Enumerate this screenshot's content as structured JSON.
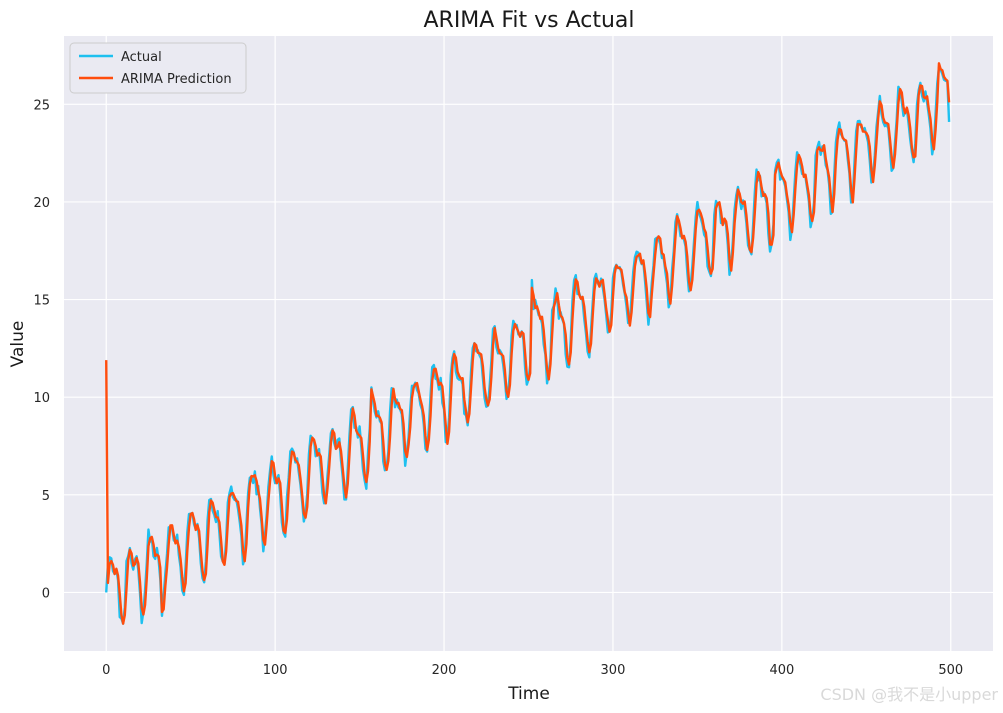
{
  "chart_data": {
    "type": "line",
    "title": "ARIMA Fit vs Actual",
    "xlabel": "Time",
    "ylabel": "Value",
    "xlim": [
      -25,
      525
    ],
    "ylim": [
      -3,
      28.5
    ],
    "xticks": [
      0,
      100,
      200,
      300,
      400,
      500
    ],
    "yticks": [
      0,
      5,
      10,
      15,
      20,
      25
    ],
    "grid": true,
    "legend": "top-left",
    "n_points": 500,
    "trend_start": 0,
    "trend_end": 25.5,
    "season_period": 12,
    "season_amplitude": 1.7,
    "series": [
      {
        "name": "Actual",
        "color": "#1ec0ef",
        "start": 0.0,
        "end": 24.1
      },
      {
        "name": "ARIMA Prediction",
        "color": "#ff4d0d",
        "start": 11.9,
        "end": 25.1
      }
    ],
    "key_points": [
      {
        "x": 0,
        "actual": 0.0,
        "prediction": 11.9
      },
      {
        "x": 10,
        "actual": -1.6,
        "prediction": -1.6
      },
      {
        "x": 33,
        "actual": -1.2,
        "prediction": -1.0
      },
      {
        "x": 88,
        "actual": 6.2,
        "prediction": 6.0
      },
      {
        "x": 157,
        "actual": 10.5,
        "prediction": 10.4
      },
      {
        "x": 252,
        "actual": 16.0,
        "prediction": 15.6
      },
      {
        "x": 396,
        "actual": 21.6,
        "prediction": 21.4
      },
      {
        "x": 493,
        "actual": 26.9,
        "prediction": 27.1
      },
      {
        "x": 499,
        "actual": 24.1,
        "prediction": 25.1
      }
    ]
  },
  "watermark": "CSDN @我不是小upper"
}
